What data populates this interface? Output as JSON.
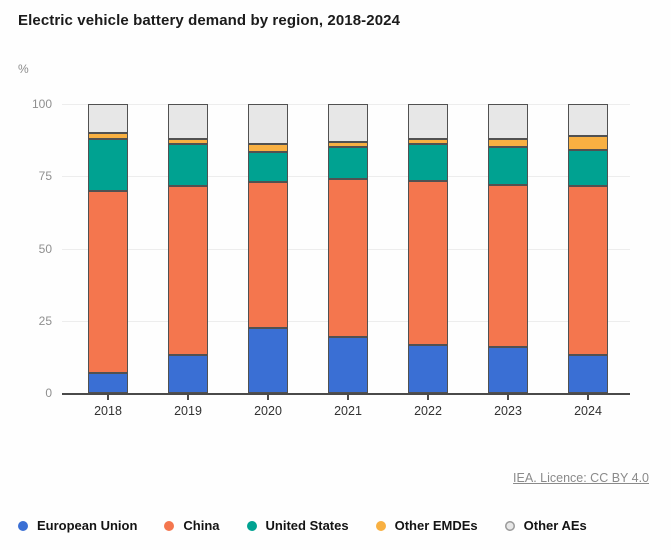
{
  "chart_data": {
    "type": "bar",
    "variant": "stacked-100",
    "title": "Electric vehicle battery demand by region, 2018-2024",
    "xlabel": "",
    "ylabel": "%",
    "ylim": [
      0,
      100
    ],
    "yticks": [
      0,
      25,
      50,
      75,
      100
    ],
    "grid": true,
    "legend_position": "bottom",
    "categories": [
      "2018",
      "2019",
      "2020",
      "2021",
      "2022",
      "2023",
      "2024"
    ],
    "series": [
      {
        "name": "European Union",
        "color": "#3a6fd4",
        "values": [
          7,
          13,
          22.5,
          19.5,
          16.5,
          16,
          13
        ]
      },
      {
        "name": "China",
        "color": "#f4764e",
        "values": [
          63,
          58.5,
          50.5,
          54.5,
          57,
          56,
          58.5
        ]
      },
      {
        "name": "United States",
        "color": "#00a291",
        "values": [
          18,
          14.5,
          10.5,
          11,
          12.5,
          13,
          12.5
        ]
      },
      {
        "name": "Other EMDEs",
        "color": "#f8b042",
        "values": [
          2,
          2,
          2.5,
          2,
          2,
          3,
          5
        ]
      },
      {
        "name": "Other AEs",
        "color": "#e7e7e7",
        "dot_border": "#9a9a9a",
        "values": [
          10,
          12,
          14,
          13,
          12,
          12,
          11
        ]
      }
    ],
    "colors": {
      "axis": "#4a4a4a",
      "gridline": "#ededed",
      "segment_border": "#515151",
      "tick_label": "#8f8f8f",
      "category_label": "#333333"
    }
  },
  "attribution": {
    "label": "IEA. Licence: CC BY 4.0"
  }
}
